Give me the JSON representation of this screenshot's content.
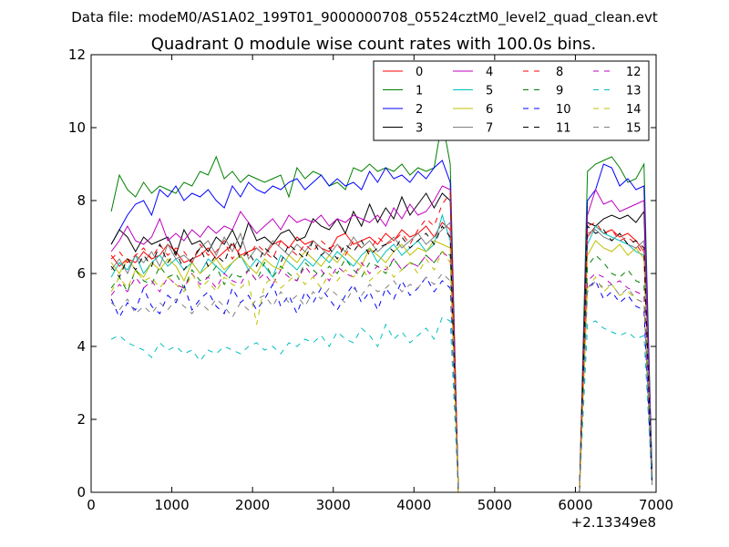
{
  "figure": {
    "suptitle": "Data file: modeM0/AS1A02_199T01_9000000708_05524cztM0_level2_quad_clean.evt"
  },
  "chart_data": {
    "type": "line",
    "title": "Quadrant 0 module wise count rates with 100.0s bins.",
    "xlabel": "",
    "ylabel": "",
    "x_offset_label": "+2.13349e8",
    "xlim": [
      0,
      7000
    ],
    "ylim": [
      0,
      12
    ],
    "xticks": [
      0,
      1000,
      2000,
      3000,
      4000,
      5000,
      6000,
      7000
    ],
    "yticks": [
      0,
      2,
      4,
      6,
      8,
      10,
      12
    ],
    "legend": {
      "position": "top-right",
      "columns": 4
    },
    "grid": false,
    "x": [
      250,
      350,
      450,
      550,
      650,
      750,
      850,
      950,
      1050,
      1150,
      1250,
      1350,
      1450,
      1550,
      1650,
      1750,
      1850,
      1950,
      2050,
      2150,
      2250,
      2350,
      2450,
      2550,
      2650,
      2750,
      2850,
      2950,
      3050,
      3150,
      3250,
      3350,
      3450,
      3550,
      3650,
      3750,
      3850,
      3950,
      4050,
      4150,
      4250,
      4350,
      4450,
      4550,
      4650,
      4750,
      4850,
      4950,
      5050,
      5150,
      5250,
      5350,
      5450,
      5550,
      5650,
      5750,
      5850,
      5950,
      6050,
      6150,
      6250,
      6350,
      6450,
      6550,
      6650,
      6750,
      6850,
      6950
    ],
    "series": [
      {
        "name": "0",
        "color": "#ff0000",
        "dash": "solid",
        "values": [
          6.5,
          6.2,
          6.4,
          6.3,
          6.6,
          6.4,
          6.5,
          6.8,
          6.6,
          6.3,
          6.4,
          6.5,
          6.7,
          6.4,
          6.6,
          6.8,
          6.5,
          6.6,
          6.7,
          6.5,
          6.8,
          6.9,
          6.7,
          7.0,
          6.8,
          6.9,
          6.7,
          6.6,
          7.0,
          7.1,
          6.8,
          6.9,
          7.0,
          6.8,
          7.1,
          6.9,
          7.2,
          7.0,
          7.1,
          7.3,
          7.0,
          7.4,
          7.2,
          0,
          0,
          0,
          0,
          0,
          0,
          0,
          0,
          0,
          0,
          0,
          0,
          0,
          0,
          0,
          0,
          7.0,
          7.3,
          7.1,
          7.2,
          7.0,
          7.1,
          6.9,
          6.6,
          0.3
        ]
      },
      {
        "name": "1",
        "color": "#008000",
        "dash": "solid",
        "values": [
          7.7,
          8.7,
          8.3,
          8.1,
          8.5,
          8.2,
          8.4,
          8.3,
          8.2,
          8.5,
          8.4,
          8.8,
          8.7,
          9.2,
          8.6,
          8.8,
          8.5,
          8.7,
          8.6,
          8.5,
          8.6,
          8.7,
          8.1,
          8.9,
          8.6,
          8.8,
          8.7,
          8.4,
          8.5,
          8.3,
          8.9,
          8.8,
          9.0,
          8.8,
          8.9,
          8.8,
          9.0,
          8.7,
          8.9,
          8.8,
          8.9,
          10.2,
          9.0,
          0,
          0,
          0,
          0,
          0,
          0,
          0,
          0,
          0,
          0,
          0,
          0,
          0,
          0,
          0,
          0,
          8.8,
          9.0,
          9.1,
          9.2,
          8.9,
          8.5,
          8.6,
          9.0,
          0.4
        ]
      },
      {
        "name": "2",
        "color": "#0000ff",
        "dash": "solid",
        "values": [
          6.8,
          7.2,
          7.6,
          7.9,
          8.0,
          7.6,
          8.3,
          8.1,
          8.4,
          8.0,
          8.2,
          8.1,
          8.3,
          8.0,
          7.8,
          8.4,
          8.1,
          8.5,
          8.3,
          8.2,
          8.4,
          8.3,
          8.5,
          8.6,
          8.3,
          8.5,
          8.7,
          8.4,
          8.6,
          8.4,
          8.5,
          8.3,
          8.8,
          8.5,
          8.9,
          8.6,
          8.7,
          8.5,
          8.8,
          8.6,
          8.9,
          9.1,
          8.5,
          0,
          0,
          0,
          0,
          0,
          0,
          0,
          0,
          0,
          0,
          0,
          0,
          0,
          0,
          0,
          0,
          8.0,
          8.3,
          9.0,
          8.9,
          8.4,
          8.6,
          8.3,
          8.4,
          0.5
        ]
      },
      {
        "name": "3",
        "color": "#000000",
        "dash": "solid",
        "values": [
          6.8,
          7.2,
          7.0,
          6.6,
          7.0,
          6.8,
          6.9,
          7.0,
          6.5,
          7.2,
          6.8,
          6.9,
          6.6,
          7.0,
          6.8,
          7.2,
          6.7,
          7.4,
          6.9,
          7.0,
          6.8,
          7.1,
          7.2,
          6.9,
          7.0,
          7.5,
          7.3,
          7.2,
          7.5,
          7.1,
          7.7,
          7.3,
          7.9,
          7.4,
          7.8,
          7.5,
          8.1,
          7.6,
          7.9,
          8.2,
          7.8,
          8.2,
          8.0,
          0,
          0,
          0,
          0,
          0,
          0,
          0,
          0,
          0,
          0,
          0,
          0,
          0,
          0,
          0,
          0,
          7.4,
          7.3,
          7.5,
          7.6,
          7.5,
          7.6,
          7.4,
          7.7,
          0.4
        ]
      },
      {
        "name": "4",
        "color": "#bf00bf",
        "dash": "solid",
        "values": [
          6.6,
          6.9,
          7.3,
          6.9,
          6.8,
          7.0,
          7.5,
          6.9,
          7.1,
          6.9,
          7.2,
          7.0,
          7.3,
          7.1,
          7.3,
          7.2,
          7.7,
          7.4,
          7.1,
          7.3,
          7.5,
          7.2,
          7.6,
          7.4,
          7.5,
          7.4,
          7.6,
          7.3,
          7.5,
          7.4,
          7.6,
          7.5,
          7.4,
          7.6,
          7.3,
          7.8,
          7.5,
          7.9,
          7.6,
          7.7,
          8.0,
          8.4,
          8.3,
          0,
          0,
          0,
          0,
          0,
          0,
          0,
          0,
          0,
          0,
          0,
          0,
          0,
          0,
          0,
          0,
          7.6,
          8.3,
          7.9,
          8.0,
          7.7,
          7.8,
          7.9,
          8.0,
          0.3
        ]
      },
      {
        "name": "5",
        "color": "#00bfbf",
        "dash": "solid",
        "values": [
          5.9,
          6.3,
          6.1,
          6.5,
          6.0,
          6.3,
          6.5,
          6.2,
          6.4,
          6.1,
          6.3,
          6.0,
          6.4,
          6.2,
          6.0,
          6.3,
          6.5,
          6.1,
          6.4,
          6.2,
          5.9,
          6.5,
          6.3,
          6.1,
          6.4,
          6.2,
          6.5,
          6.3,
          6.6,
          6.4,
          6.2,
          6.5,
          6.7,
          6.3,
          6.6,
          6.8,
          6.5,
          6.7,
          6.9,
          6.6,
          6.8,
          7.6,
          6.9,
          0,
          0,
          0,
          0,
          0,
          0,
          0,
          0,
          0,
          0,
          0,
          0,
          0,
          0,
          0,
          0,
          6.8,
          7.3,
          7.1,
          7.0,
          6.9,
          6.8,
          6.6,
          6.5,
          0.2
        ]
      },
      {
        "name": "6",
        "color": "#bfbf00",
        "dash": "solid",
        "values": [
          6.3,
          6.0,
          6.4,
          6.1,
          5.9,
          6.3,
          6.1,
          6.4,
          6.2,
          5.8,
          6.3,
          6.0,
          6.2,
          6.4,
          6.1,
          6.3,
          6.5,
          6.2,
          6.0,
          6.4,
          6.2,
          6.1,
          6.5,
          6.3,
          6.6,
          6.4,
          6.2,
          6.5,
          6.3,
          6.6,
          6.4,
          6.2,
          6.7,
          6.5,
          6.3,
          6.6,
          6.8,
          6.5,
          6.7,
          6.6,
          6.9,
          6.8,
          6.7,
          0,
          0,
          0,
          0,
          0,
          0,
          0,
          0,
          0,
          0,
          0,
          0,
          0,
          0,
          0,
          0,
          6.5,
          6.9,
          6.7,
          6.6,
          6.8,
          6.5,
          6.7,
          6.4,
          0.3
        ]
      },
      {
        "name": "7",
        "color": "#7f7f7f",
        "dash": "solid",
        "values": [
          6.1,
          6.4,
          6.0,
          6.5,
          6.3,
          6.6,
          6.2,
          6.8,
          6.4,
          6.5,
          6.3,
          6.7,
          6.9,
          6.5,
          7.0,
          6.6,
          7.1,
          6.4,
          6.7,
          6.5,
          6.9,
          6.7,
          6.5,
          6.8,
          6.6,
          6.9,
          6.7,
          6.5,
          6.8,
          6.6,
          7.0,
          6.7,
          6.9,
          6.6,
          6.8,
          7.0,
          6.7,
          6.9,
          7.1,
          6.8,
          7.0,
          7.2,
          7.4,
          0,
          0,
          0,
          0,
          0,
          0,
          0,
          0,
          0,
          0,
          0,
          0,
          0,
          0,
          0,
          0,
          7.1,
          7.2,
          7.0,
          6.9,
          7.1,
          6.8,
          6.7,
          6.9,
          0.3
        ]
      },
      {
        "name": "8",
        "color": "#ff0000",
        "dash": "dash",
        "values": [
          6.4,
          6.6,
          6.3,
          6.5,
          6.7,
          6.4,
          6.8,
          6.5,
          6.7,
          6.6,
          6.3,
          6.8,
          6.5,
          6.6,
          6.9,
          6.4,
          6.7,
          6.5,
          6.8,
          6.6,
          6.4,
          6.9,
          6.7,
          6.5,
          6.8,
          6.6,
          6.9,
          6.7,
          6.8,
          6.5,
          6.9,
          6.7,
          6.6,
          7.0,
          6.8,
          6.9,
          7.1,
          6.8,
          7.2,
          7.5,
          7.3,
          7.9,
          8.2,
          0,
          0,
          0,
          0,
          0,
          0,
          0,
          0,
          0,
          0,
          0,
          0,
          0,
          0,
          0,
          0,
          7.3,
          7.4,
          7.1,
          7.2,
          6.9,
          7.0,
          6.8,
          6.5,
          0.2
        ]
      },
      {
        "name": "9",
        "color": "#008000",
        "dash": "dash",
        "values": [
          5.6,
          5.9,
          5.5,
          6.1,
          5.8,
          5.7,
          6.2,
          5.9,
          6.0,
          5.6,
          6.1,
          5.8,
          5.9,
          6.2,
          5.7,
          6.0,
          5.9,
          6.1,
          5.8,
          6.3,
          5.9,
          6.2,
          6.0,
          5.8,
          6.3,
          6.1,
          5.9,
          6.2,
          6.0,
          6.4,
          6.1,
          5.9,
          6.3,
          6.2,
          6.0,
          6.4,
          6.1,
          6.3,
          6.2,
          6.5,
          6.3,
          6.6,
          6.5,
          0,
          0,
          0,
          0,
          0,
          0,
          0,
          0,
          0,
          0,
          0,
          0,
          0,
          0,
          0,
          0,
          6.2,
          6.5,
          6.3,
          6.0,
          5.9,
          6.1,
          5.8,
          5.7,
          0.3
        ]
      },
      {
        "name": "10",
        "color": "#0000ff",
        "dash": "dash",
        "values": [
          5.3,
          4.8,
          5.2,
          5.0,
          5.6,
          5.1,
          4.9,
          5.4,
          5.2,
          5.7,
          5.0,
          5.3,
          5.5,
          5.1,
          4.9,
          5.6,
          5.2,
          5.4,
          5.0,
          5.3,
          5.7,
          5.1,
          5.4,
          4.9,
          5.5,
          5.2,
          5.6,
          5.3,
          5.0,
          5.4,
          5.7,
          5.2,
          5.5,
          5.0,
          5.6,
          5.3,
          5.8,
          5.4,
          5.6,
          5.9,
          5.5,
          5.8,
          5.6,
          0,
          0,
          0,
          0,
          0,
          0,
          0,
          0,
          0,
          0,
          0,
          0,
          0,
          0,
          0,
          0,
          5.6,
          5.8,
          5.3,
          5.5,
          5.2,
          5.4,
          5.1,
          5.0,
          0.2
        ]
      },
      {
        "name": "11",
        "color": "#000000",
        "dash": "dash",
        "values": [
          6.2,
          5.9,
          6.4,
          6.1,
          6.5,
          6.2,
          6.8,
          6.3,
          6.6,
          6.1,
          6.4,
          6.7,
          6.2,
          6.5,
          6.3,
          6.9,
          6.4,
          6.6,
          6.2,
          6.7,
          6.5,
          6.3,
          6.8,
          6.6,
          6.4,
          6.9,
          6.5,
          6.7,
          6.4,
          6.8,
          6.6,
          6.9,
          6.5,
          6.7,
          6.8,
          6.6,
          7.0,
          6.7,
          6.9,
          7.1,
          6.8,
          7.3,
          7.0,
          0,
          0,
          0,
          0,
          0,
          0,
          0,
          0,
          0,
          0,
          0,
          0,
          0,
          0,
          0,
          0,
          7.3,
          7.1,
          7.2,
          6.9,
          7.1,
          6.8,
          6.9,
          6.7,
          0.3
        ]
      },
      {
        "name": "12",
        "color": "#bf00bf",
        "dash": "dash",
        "values": [
          5.4,
          5.7,
          5.5,
          5.9,
          5.6,
          5.8,
          5.5,
          5.9,
          5.7,
          5.6,
          6.0,
          5.7,
          5.9,
          5.6,
          6.0,
          5.8,
          5.7,
          6.1,
          5.8,
          6.0,
          5.7,
          6.1,
          5.9,
          5.8,
          6.2,
          5.9,
          6.1,
          5.8,
          6.2,
          6.0,
          5.9,
          6.3,
          6.0,
          6.2,
          6.1,
          6.4,
          6.1,
          6.3,
          6.2,
          6.5,
          6.3,
          6.6,
          6.4,
          0,
          0,
          0,
          0,
          0,
          0,
          0,
          0,
          0,
          0,
          0,
          0,
          0,
          0,
          0,
          0,
          5.8,
          6.0,
          5.9,
          5.7,
          5.8,
          5.6,
          5.5,
          5.4,
          0.2
        ]
      },
      {
        "name": "13",
        "color": "#00bfbf",
        "dash": "dash",
        "values": [
          4.2,
          4.3,
          4.1,
          4.0,
          3.9,
          3.7,
          4.1,
          3.9,
          4.0,
          3.8,
          3.9,
          3.6,
          3.9,
          3.8,
          4.0,
          3.9,
          3.8,
          4.0,
          4.1,
          3.9,
          4.0,
          3.8,
          4.1,
          4.0,
          4.2,
          4.1,
          4.3,
          4.0,
          4.4,
          4.2,
          4.1,
          4.5,
          4.3,
          4.0,
          4.6,
          4.2,
          4.4,
          4.1,
          4.3,
          4.5,
          4.2,
          4.8,
          4.7,
          0,
          0,
          0,
          0,
          0,
          0,
          0,
          0,
          0,
          0,
          0,
          0,
          0,
          0,
          0,
          0,
          4.6,
          4.7,
          4.5,
          4.4,
          4.3,
          4.4,
          4.2,
          4.3,
          0.2
        ]
      },
      {
        "name": "14",
        "color": "#bfbf00",
        "dash": "dash",
        "values": [
          5.5,
          5.9,
          5.6,
          6.1,
          5.8,
          5.9,
          5.6,
          5.9,
          5.7,
          5.5,
          6.0,
          5.6,
          5.8,
          5.5,
          5.9,
          5.7,
          5.6,
          5.8,
          4.6,
          5.7,
          5.9,
          5.6,
          5.8,
          6.0,
          5.7,
          5.9,
          5.6,
          6.0,
          5.8,
          6.1,
          5.9,
          6.2,
          5.8,
          6.0,
          6.2,
          5.9,
          6.1,
          6.3,
          6.0,
          6.4,
          6.1,
          6.6,
          6.3,
          0,
          0,
          0,
          0,
          0,
          0,
          0,
          0,
          0,
          0,
          0,
          0,
          0,
          0,
          0,
          0,
          5.6,
          5.9,
          5.5,
          5.7,
          5.4,
          5.5,
          5.3,
          5.2,
          0.2
        ]
      },
      {
        "name": "15",
        "color": "#7f7f7f",
        "dash": "dash",
        "values": [
          5.2,
          5.0,
          5.3,
          4.9,
          5.1,
          4.9,
          5.2,
          5.0,
          5.3,
          5.1,
          4.9,
          5.2,
          5.0,
          5.3,
          5.1,
          4.8,
          5.2,
          5.0,
          5.3,
          5.4,
          5.1,
          5.5,
          5.2,
          5.4,
          5.1,
          5.5,
          5.3,
          5.6,
          5.4,
          5.2,
          5.6,
          5.4,
          5.7,
          5.5,
          5.6,
          5.8,
          5.5,
          5.7,
          5.6,
          5.9,
          5.7,
          6.0,
          5.8,
          0,
          0,
          0,
          0,
          0,
          0,
          0,
          0,
          0,
          0,
          0,
          0,
          0,
          0,
          0,
          0,
          5.5,
          5.8,
          5.6,
          5.7,
          5.4,
          5.6,
          5.3,
          5.2,
          0.2
        ]
      }
    ]
  }
}
